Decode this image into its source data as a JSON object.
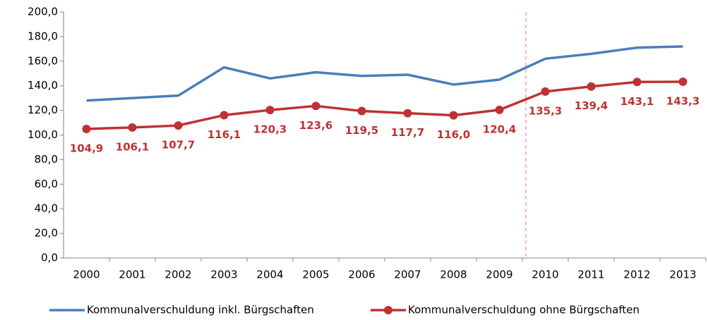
{
  "chart_data": {
    "type": "line",
    "categories": [
      "2000",
      "2001",
      "2002",
      "2003",
      "2004",
      "2005",
      "2006",
      "2007",
      "2008",
      "2009",
      "2010",
      "2011",
      "2012",
      "2013"
    ],
    "series": [
      {
        "name": "Kommunalverschuldung inkl. Bürgschaften",
        "color": "#4a7ebb",
        "marker": false,
        "values": [
          128,
          130,
          132,
          155,
          146,
          151,
          148,
          149,
          141,
          145,
          162,
          166,
          171,
          172
        ]
      },
      {
        "name": "Kommunalverschuldung ohne Bürgschaften",
        "color": "#be3234",
        "marker": true,
        "values": [
          104.9,
          106.1,
          107.7,
          116.1,
          120.3,
          123.6,
          119.5,
          117.7,
          116.0,
          120.4,
          135.3,
          139.4,
          143.1,
          143.3
        ],
        "value_labels": [
          "104,9",
          "106,1",
          "107,7",
          "116,1",
          "120,3",
          "123,6",
          "119,5",
          "117,7",
          "116,0",
          "120,4",
          "135,3",
          "139,4",
          "143,1",
          "143,3"
        ]
      }
    ],
    "ylim": [
      0,
      200
    ],
    "yticks": [
      {
        "value": 0,
        "label": "0,0"
      },
      {
        "value": 20,
        "label": "20,0"
      },
      {
        "value": 40,
        "label": "40,0"
      },
      {
        "value": 60,
        "label": "60,0"
      },
      {
        "value": 80,
        "label": "80,0"
      },
      {
        "value": 100,
        "label": "100,0"
      },
      {
        "value": 120,
        "label": "120,0"
      },
      {
        "value": 140,
        "label": "140,0"
      },
      {
        "value": 160,
        "label": "160,0"
      },
      {
        "value": 180,
        "label": "180,0"
      },
      {
        "value": 200,
        "label": "200,0"
      }
    ],
    "grid": false,
    "legend": "bottom"
  }
}
